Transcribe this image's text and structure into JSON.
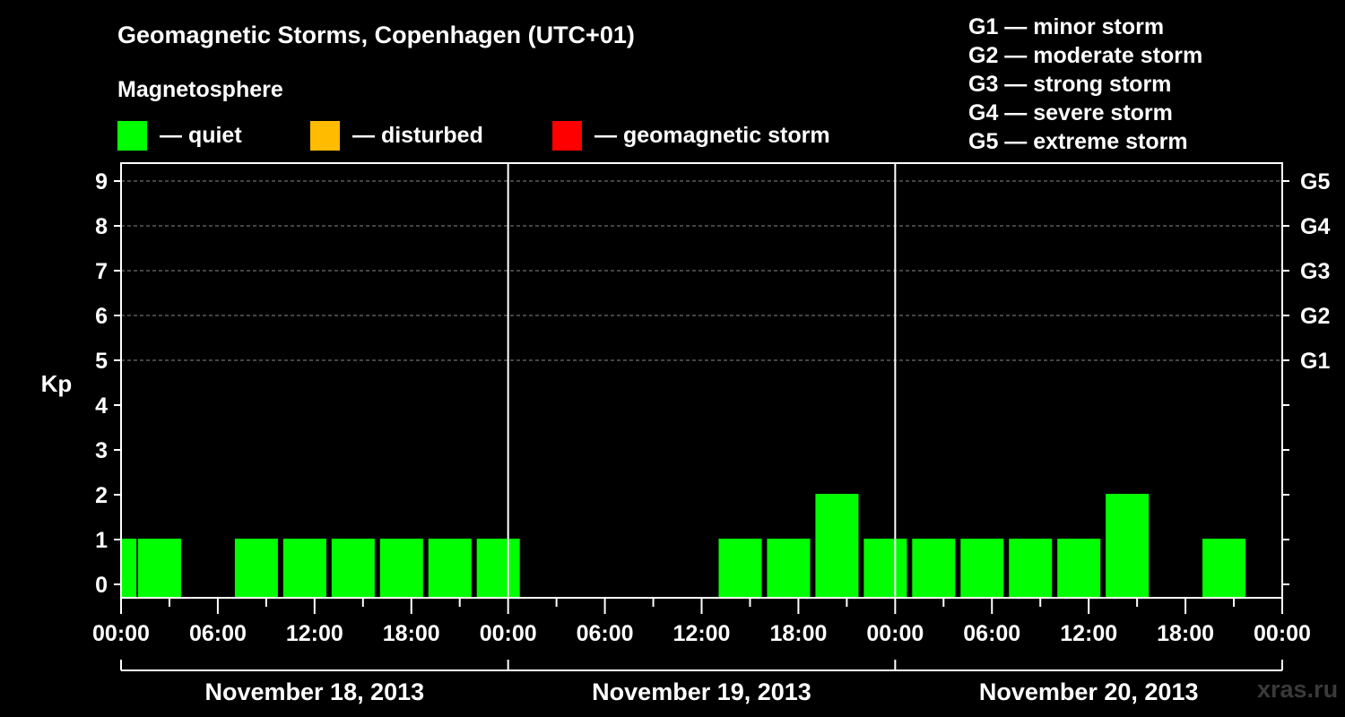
{
  "chart_data": {
    "type": "bar",
    "title": "Geomagnetic Storms, Copenhagen (UTC+01)",
    "subtitle": "Magnetosphere",
    "ylabel": "Kp",
    "ylim": [
      0,
      9
    ],
    "yticks": [
      "0",
      "1",
      "2",
      "3",
      "4",
      "5",
      "6",
      "7",
      "8",
      "9"
    ],
    "right_axis_labels": [
      {
        "kp": 5,
        "label": "G1"
      },
      {
        "kp": 6,
        "label": "G2"
      },
      {
        "kp": 7,
        "label": "G3"
      },
      {
        "kp": 8,
        "label": "G4"
      },
      {
        "kp": 9,
        "label": "G5"
      }
    ],
    "grid": "dashed horizontal at Kp 5-9",
    "xlim_hours": [
      0,
      72
    ],
    "x_tick_labels": [
      "00:00",
      "06:00",
      "12:00",
      "18:00",
      "00:00",
      "06:00",
      "12:00",
      "18:00",
      "00:00",
      "06:00",
      "12:00",
      "18:00",
      "00:00"
    ],
    "day_labels": [
      "November 18, 2013",
      "November 19, 2013",
      "November 20, 2013"
    ],
    "interval_hours": 3,
    "bars": [
      {
        "start_hour": 0,
        "end_hour": 1,
        "kp": 1
      },
      {
        "start_hour": 1,
        "kp": 1
      },
      {
        "start_hour": 4,
        "kp": 0
      },
      {
        "start_hour": 7,
        "kp": 1
      },
      {
        "start_hour": 10,
        "kp": 1
      },
      {
        "start_hour": 13,
        "kp": 1
      },
      {
        "start_hour": 16,
        "kp": 1
      },
      {
        "start_hour": 19,
        "kp": 1
      },
      {
        "start_hour": 22,
        "kp": 1
      },
      {
        "start_hour": 25,
        "kp": 0
      },
      {
        "start_hour": 28,
        "kp": 0
      },
      {
        "start_hour": 31,
        "kp": 0
      },
      {
        "start_hour": 34,
        "kp": 0
      },
      {
        "start_hour": 37,
        "kp": 1
      },
      {
        "start_hour": 40,
        "kp": 1
      },
      {
        "start_hour": 43,
        "kp": 2
      },
      {
        "start_hour": 46,
        "kp": 1
      },
      {
        "start_hour": 49,
        "kp": 1
      },
      {
        "start_hour": 52,
        "kp": 1
      },
      {
        "start_hour": 55,
        "kp": 1
      },
      {
        "start_hour": 58,
        "kp": 1
      },
      {
        "start_hour": 61,
        "kp": 2
      },
      {
        "start_hour": 64,
        "kp": 0
      },
      {
        "start_hour": 67,
        "kp": 1
      }
    ],
    "legend": [
      {
        "color": "#00ff00",
        "label": "— quiet"
      },
      {
        "color": "#ffbb00",
        "label": "— disturbed"
      },
      {
        "color": "#ff0000",
        "label": "— geomagnetic storm"
      }
    ],
    "storm_scale": [
      "G1 — minor storm",
      "G2 — moderate storm",
      "G3 — strong storm",
      "G4 — severe storm",
      "G5 — extreme storm"
    ]
  },
  "watermark": "xras.ru",
  "colors": {
    "background": "#000000",
    "axis": "#ffffff",
    "grid": "#888888",
    "quiet": "#00ff00"
  }
}
